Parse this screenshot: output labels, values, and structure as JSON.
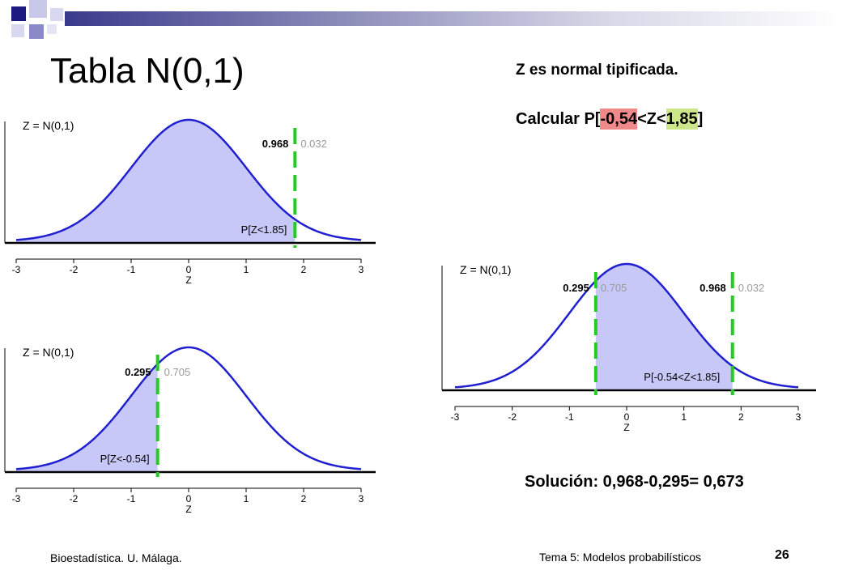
{
  "slide": {
    "title": "Tabla N(0,1)",
    "subtitle": "Z es normal tipificada.",
    "calc_prefix": "Calcular P[",
    "calc_lower": "-0,54",
    "calc_mid": "<Z<",
    "calc_upper": "1,85",
    "calc_suffix": "]",
    "solution": "Solución: 0,968-0,295= 0,673",
    "footer_left": "Bioestadística.  U. Málaga.",
    "footer_right": "Tema 5: Modelos probabilísticos",
    "page_number": "26"
  },
  "colors": {
    "curve": "#2020d0",
    "fill": "#c8c8f8",
    "cut_line": "#22cc22",
    "highlight_lower": "#f08a8a",
    "highlight_upper": "#cde68a",
    "grey_text": "#999999"
  },
  "chart_data": [
    {
      "type": "area",
      "title": "Z = N(0,1)",
      "xlabel": "Z",
      "xlim": [
        -3,
        3
      ],
      "x_ticks": [
        "-3",
        "-2",
        "-1",
        "0",
        "1",
        "2",
        "3"
      ],
      "shaded_region": [
        -3,
        1.85
      ],
      "cut_points": [
        1.85
      ],
      "labels": {
        "left_prob": "0.968",
        "right_prob": "0.032",
        "region": "P[Z<1.85]"
      }
    },
    {
      "type": "area",
      "title": "Z = N(0,1)",
      "xlabel": "Z",
      "xlim": [
        -3,
        3
      ],
      "x_ticks": [
        "-3",
        "-2",
        "-1",
        "0",
        "1",
        "2",
        "3"
      ],
      "shaded_region": [
        -3,
        -0.54
      ],
      "cut_points": [
        -0.54
      ],
      "labels": {
        "left_prob": "0.295",
        "right_prob": "0.705",
        "region": "P[Z<-0.54]"
      }
    },
    {
      "type": "area",
      "title": "Z = N(0,1)",
      "xlabel": "Z",
      "xlim": [
        -3,
        3
      ],
      "x_ticks": [
        "-3",
        "-2",
        "-1",
        "0",
        "1",
        "2",
        "3"
      ],
      "shaded_region": [
        -0.54,
        1.85
      ],
      "cut_points": [
        -0.54,
        1.85
      ],
      "labels": {
        "lower_left_prob": "0.295",
        "lower_right_prob": "0.705",
        "upper_left_prob": "0.968",
        "upper_right_prob": "0.032",
        "region": "P[-0.54<Z<1.85]"
      }
    }
  ]
}
